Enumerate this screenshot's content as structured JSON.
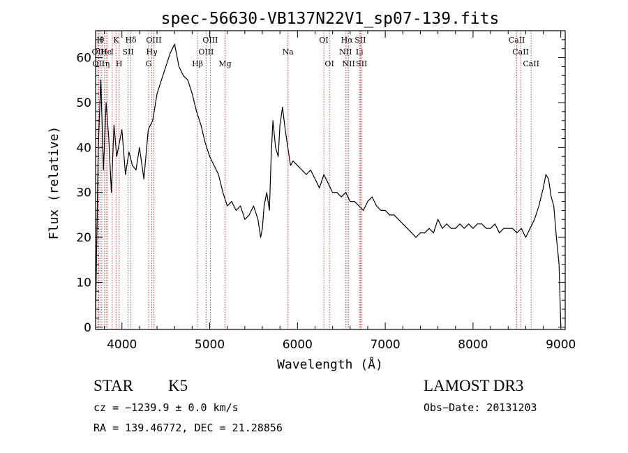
{
  "chart_data": {
    "type": "line",
    "title": "spec-56630-VB137N22V1_sp07-139.fits",
    "xlabel": "Wavelength (Å)",
    "ylabel": "Flux (relative)",
    "xlim": [
      3700,
      9050
    ],
    "ylim": [
      -0.5,
      66
    ],
    "xticks": [
      4000,
      5000,
      6000,
      7000,
      8000,
      9000
    ],
    "yticks": [
      0,
      10,
      20,
      30,
      40,
      50,
      60
    ],
    "xtick_labels": [
      "4000",
      "5000",
      "6000",
      "7000",
      "8000",
      "9000"
    ],
    "ytick_labels": [
      "0",
      "10",
      "20",
      "30",
      "40",
      "50",
      "60"
    ],
    "grid": false,
    "series": [
      {
        "x": [
          3700,
          3730,
          3760,
          3790,
          3820,
          3850,
          3880,
          3910,
          3940,
          3970,
          4000,
          4040,
          4080,
          4120,
          4160,
          4200,
          4250,
          4300,
          4350,
          4400,
          4450,
          4500,
          4550,
          4600,
          4650,
          4700,
          4750,
          4800,
          4850,
          4900,
          4950,
          5000,
          5050,
          5100,
          5150,
          5200,
          5250,
          5300,
          5350,
          5400,
          5450,
          5500,
          5550,
          5580,
          5600,
          5620,
          5650,
          5680,
          5700,
          5720,
          5750,
          5780,
          5800,
          5830,
          5860,
          5890,
          5920,
          5950,
          6000,
          6050,
          6100,
          6150,
          6200,
          6250,
          6300,
          6350,
          6400,
          6450,
          6500,
          6550,
          6600,
          6650,
          6700,
          6750,
          6800,
          6850,
          6900,
          6950,
          7000,
          7050,
          7100,
          7150,
          7200,
          7250,
          7300,
          7350,
          7400,
          7450,
          7500,
          7550,
          7600,
          7650,
          7700,
          7750,
          7800,
          7850,
          7900,
          7950,
          8000,
          8050,
          8100,
          8150,
          8200,
          8250,
          8300,
          8350,
          8400,
          8450,
          8500,
          8550,
          8600,
          8650,
          8700,
          8750,
          8800,
          8830,
          8860,
          8890,
          8920,
          8950,
          8980,
          9000
        ],
        "y": [
          2,
          40,
          55,
          35,
          50,
          42,
          30,
          45,
          38,
          41,
          44,
          34,
          39,
          36,
          35,
          40,
          33,
          44,
          46,
          52,
          55,
          58,
          61,
          63,
          58,
          56,
          55,
          52,
          48,
          45,
          41,
          38,
          36,
          34,
          30,
          27,
          28,
          26,
          27,
          24,
          25,
          27,
          24,
          20,
          22,
          27,
          30,
          26,
          38,
          46,
          40,
          38,
          45,
          49,
          44,
          40,
          36,
          37,
          36,
          35,
          34,
          35,
          33,
          31,
          34,
          32,
          30,
          30,
          29,
          30,
          28,
          28,
          27,
          26,
          28,
          29,
          27,
          26,
          26,
          25,
          25,
          24,
          23,
          22,
          21,
          20,
          21,
          21,
          22,
          21,
          24,
          22,
          23,
          22,
          22,
          23,
          22,
          23,
          22,
          23,
          23,
          22,
          22,
          23,
          21,
          22,
          22,
          22,
          21,
          22,
          20,
          22,
          24,
          27,
          31,
          34,
          33,
          29,
          27,
          20,
          14,
          0
        ]
      }
    ],
    "lines": [
      {
        "x": 3727,
        "label": "OII",
        "row": 2
      },
      {
        "x": 3734,
        "label": "OII",
        "row": 3
      },
      {
        "x": 3750,
        "label": "H",
        "row": 1
      },
      {
        "x": 3771,
        "label": "θ",
        "row": 1
      },
      {
        "x": 3798,
        "label": "H",
        "row": 2
      },
      {
        "x": 3820,
        "label": "He",
        "row": 2
      },
      {
        "x": 3835,
        "label": "η",
        "row": 3
      },
      {
        "x": 3889,
        "label": "I",
        "row": 2
      },
      {
        "x": 3933,
        "label": "K",
        "row": 1
      },
      {
        "x": 3968,
        "label": "H",
        "row": 3
      },
      {
        "x": 4071,
        "label": "SII",
        "row": 2
      },
      {
        "x": 4102,
        "label": "Hδ",
        "row": 1
      },
      {
        "x": 4304,
        "label": "G",
        "row": 3
      },
      {
        "x": 4341,
        "label": "Hγ",
        "row": 2
      },
      {
        "x": 4363,
        "label": "OIII",
        "row": 1
      },
      {
        "x": 4861,
        "label": "Hβ",
        "row": 3
      },
      {
        "x": 4959,
        "label": "OIII",
        "row": 2
      },
      {
        "x": 5007,
        "label": "OIII",
        "row": 1
      },
      {
        "x": 5175,
        "label": "Mg",
        "row": 3
      },
      {
        "x": 5892,
        "label": "Na",
        "row": 2
      },
      {
        "x": 6300,
        "label": "OI",
        "row": 1
      },
      {
        "x": 6364,
        "label": "OI",
        "row": 3
      },
      {
        "x": 6548,
        "label": "NII",
        "row": 2
      },
      {
        "x": 6563,
        "label": "Hα",
        "row": 1
      },
      {
        "x": 6583,
        "label": "NII",
        "row": 3
      },
      {
        "x": 6707,
        "label": "Li",
        "row": 2
      },
      {
        "x": 6716,
        "label": "SII",
        "row": 1
      },
      {
        "x": 6731,
        "label": "SII",
        "row": 3
      },
      {
        "x": 8498,
        "label": "CaII",
        "row": 1
      },
      {
        "x": 8542,
        "label": "CaII",
        "row": 2
      },
      {
        "x": 8662,
        "label": "CaII",
        "row": 3
      }
    ]
  },
  "info": {
    "object_type": "STAR",
    "subclass": "K5",
    "survey": "LAMOST DR3",
    "cz": "cz = −1239.9 ± 0.0 km/s",
    "obs_date": "Obs−Date: 20131203",
    "coords": "RA = 139.46772, DEC =  21.28856"
  },
  "colors": {
    "line_marker": "#c83030",
    "spectrum": "#000000",
    "axes": "#000000"
  }
}
